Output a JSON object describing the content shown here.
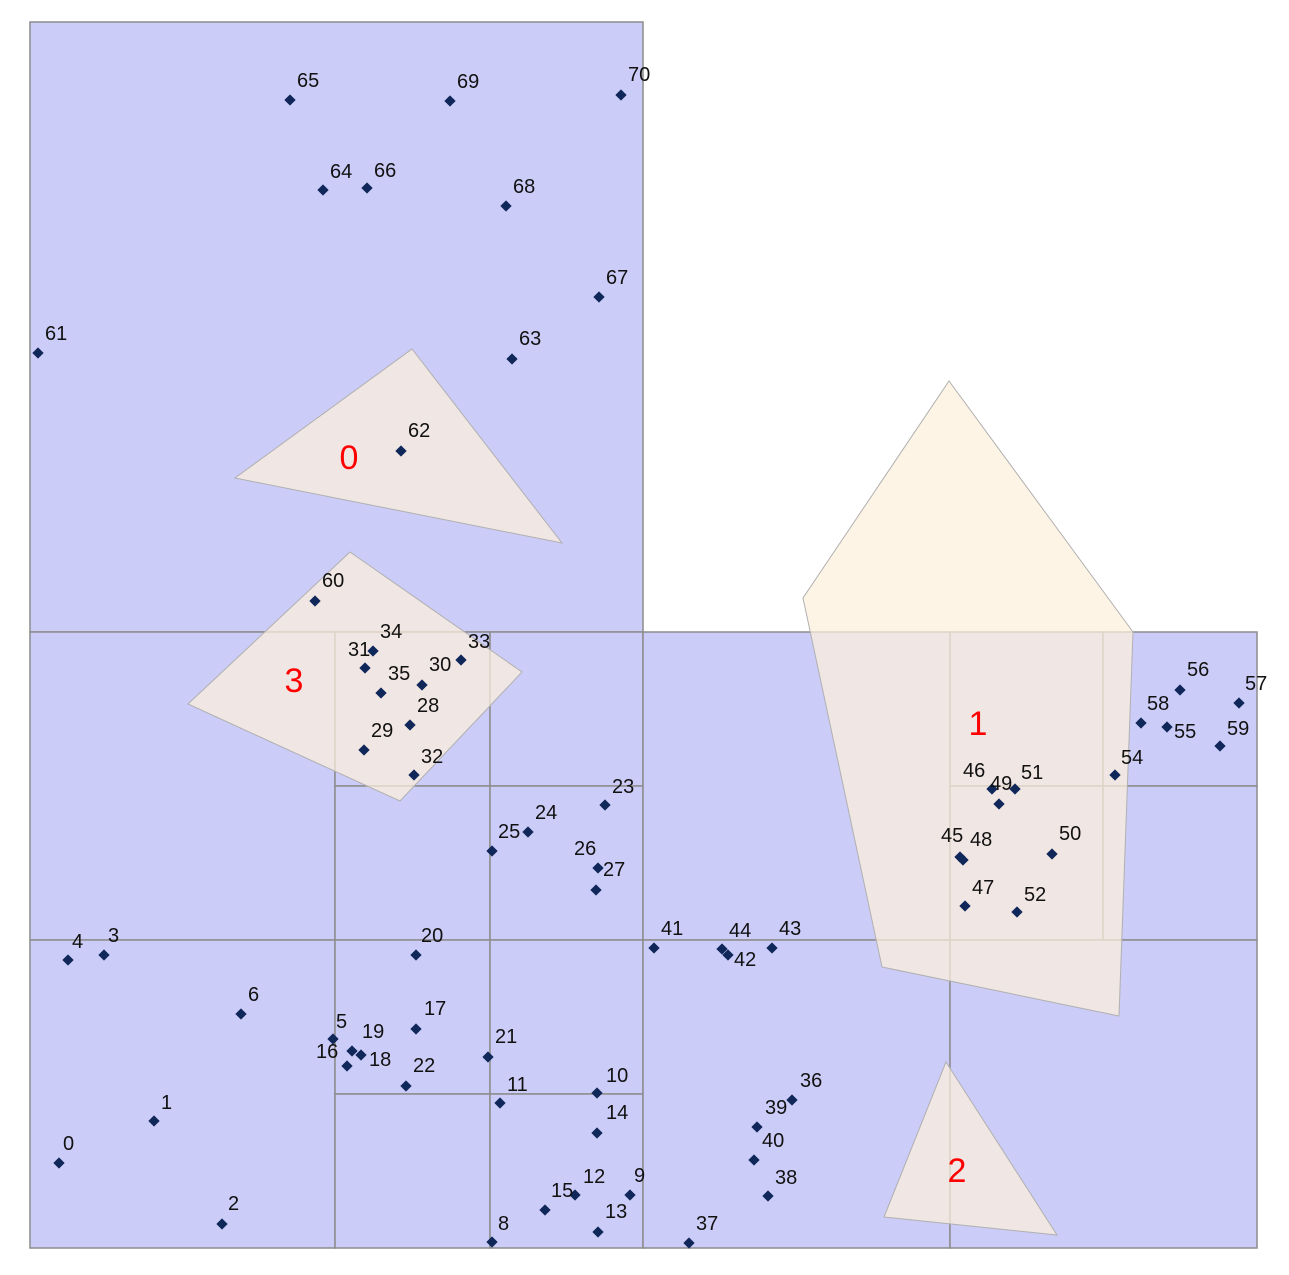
{
  "colors": {
    "background": "#ffffff",
    "cell_fill": "#ccccf8",
    "cell_stroke": "#8c8c8c",
    "polygon_fill": "#fdf0dc",
    "polygon_stroke": "#b0b0b0",
    "polygon_label": "#ff0000",
    "point_fill": "#10275a",
    "point_label": "#111111"
  },
  "polygons": [
    {
      "label": "0"
    },
    {
      "label": "1"
    },
    {
      "label": "2"
    },
    {
      "label": "3"
    }
  ],
  "points": [
    {
      "label": "0"
    },
    {
      "label": "1"
    },
    {
      "label": "2"
    },
    {
      "label": "3"
    },
    {
      "label": "4"
    },
    {
      "label": "5"
    },
    {
      "label": "6"
    },
    {
      "label": "8"
    },
    {
      "label": "9"
    },
    {
      "label": "10"
    },
    {
      "label": "11"
    },
    {
      "label": "12"
    },
    {
      "label": "13"
    },
    {
      "label": "14"
    },
    {
      "label": "15"
    },
    {
      "label": "16"
    },
    {
      "label": "17"
    },
    {
      "label": "18"
    },
    {
      "label": "19"
    },
    {
      "label": "20"
    },
    {
      "label": "21"
    },
    {
      "label": "22"
    },
    {
      "label": "23"
    },
    {
      "label": "24"
    },
    {
      "label": "25"
    },
    {
      "label": "26"
    },
    {
      "label": "27"
    },
    {
      "label": "28"
    },
    {
      "label": "29"
    },
    {
      "label": "30"
    },
    {
      "label": "31"
    },
    {
      "label": "32"
    },
    {
      "label": "33"
    },
    {
      "label": "34"
    },
    {
      "label": "35"
    },
    {
      "label": "36"
    },
    {
      "label": "37"
    },
    {
      "label": "38"
    },
    {
      "label": "39"
    },
    {
      "label": "40"
    },
    {
      "label": "41"
    },
    {
      "label": "42"
    },
    {
      "label": "43"
    },
    {
      "label": "44"
    },
    {
      "label": "45"
    },
    {
      "label": "46"
    },
    {
      "label": "47"
    },
    {
      "label": "48"
    },
    {
      "label": "49"
    },
    {
      "label": "50"
    },
    {
      "label": "51"
    },
    {
      "label": "52"
    },
    {
      "label": "54"
    },
    {
      "label": "55"
    },
    {
      "label": "56"
    },
    {
      "label": "57"
    },
    {
      "label": "58"
    },
    {
      "label": "59"
    },
    {
      "label": "60"
    },
    {
      "label": "61"
    },
    {
      "label": "62"
    },
    {
      "label": "63"
    },
    {
      "label": "64"
    },
    {
      "label": "65"
    },
    {
      "label": "66"
    },
    {
      "label": "67"
    },
    {
      "label": "68"
    },
    {
      "label": "69"
    },
    {
      "label": "70"
    }
  ]
}
